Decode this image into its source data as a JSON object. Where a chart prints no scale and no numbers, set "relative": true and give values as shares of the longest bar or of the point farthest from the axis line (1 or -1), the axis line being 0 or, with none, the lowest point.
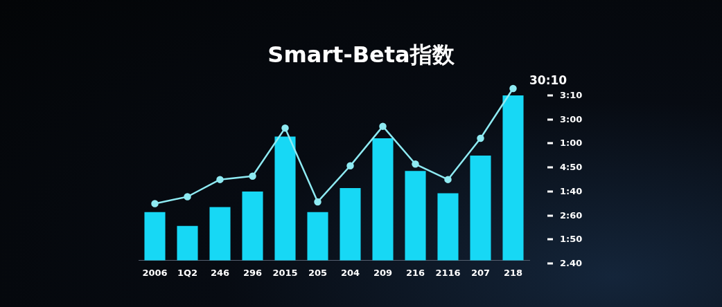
{
  "chart_data": {
    "type": "bar",
    "title": "Smart-Beta指数",
    "relative": true,
    "legend": false,
    "marker": "circle",
    "categories": [
      "2006",
      "1Q2",
      "246",
      "296",
      "2015",
      "205",
      "204",
      "209",
      "216",
      "2116",
      "207",
      "218"
    ],
    "series": [
      {
        "color": "#17d8f5",
        "values": [
          0.28,
          0.2,
          0.31,
          0.4,
          0.72,
          0.28,
          0.42,
          0.71,
          0.52,
          0.39,
          0.61,
          0.96
        ]
      },
      {
        "type": "line",
        "color": "#8eeaf2",
        "values": [
          0.33,
          0.37,
          0.47,
          0.49,
          0.77,
          0.34,
          0.55,
          0.78,
          0.56,
          0.47,
          0.71,
          1
        ]
      }
    ],
    "annotations": [
      "30:10",
      "3:10",
      "3:00",
      "1:00",
      "4:50",
      "1:40",
      "2:60",
      "1:50",
      "2.40"
    ]
  }
}
